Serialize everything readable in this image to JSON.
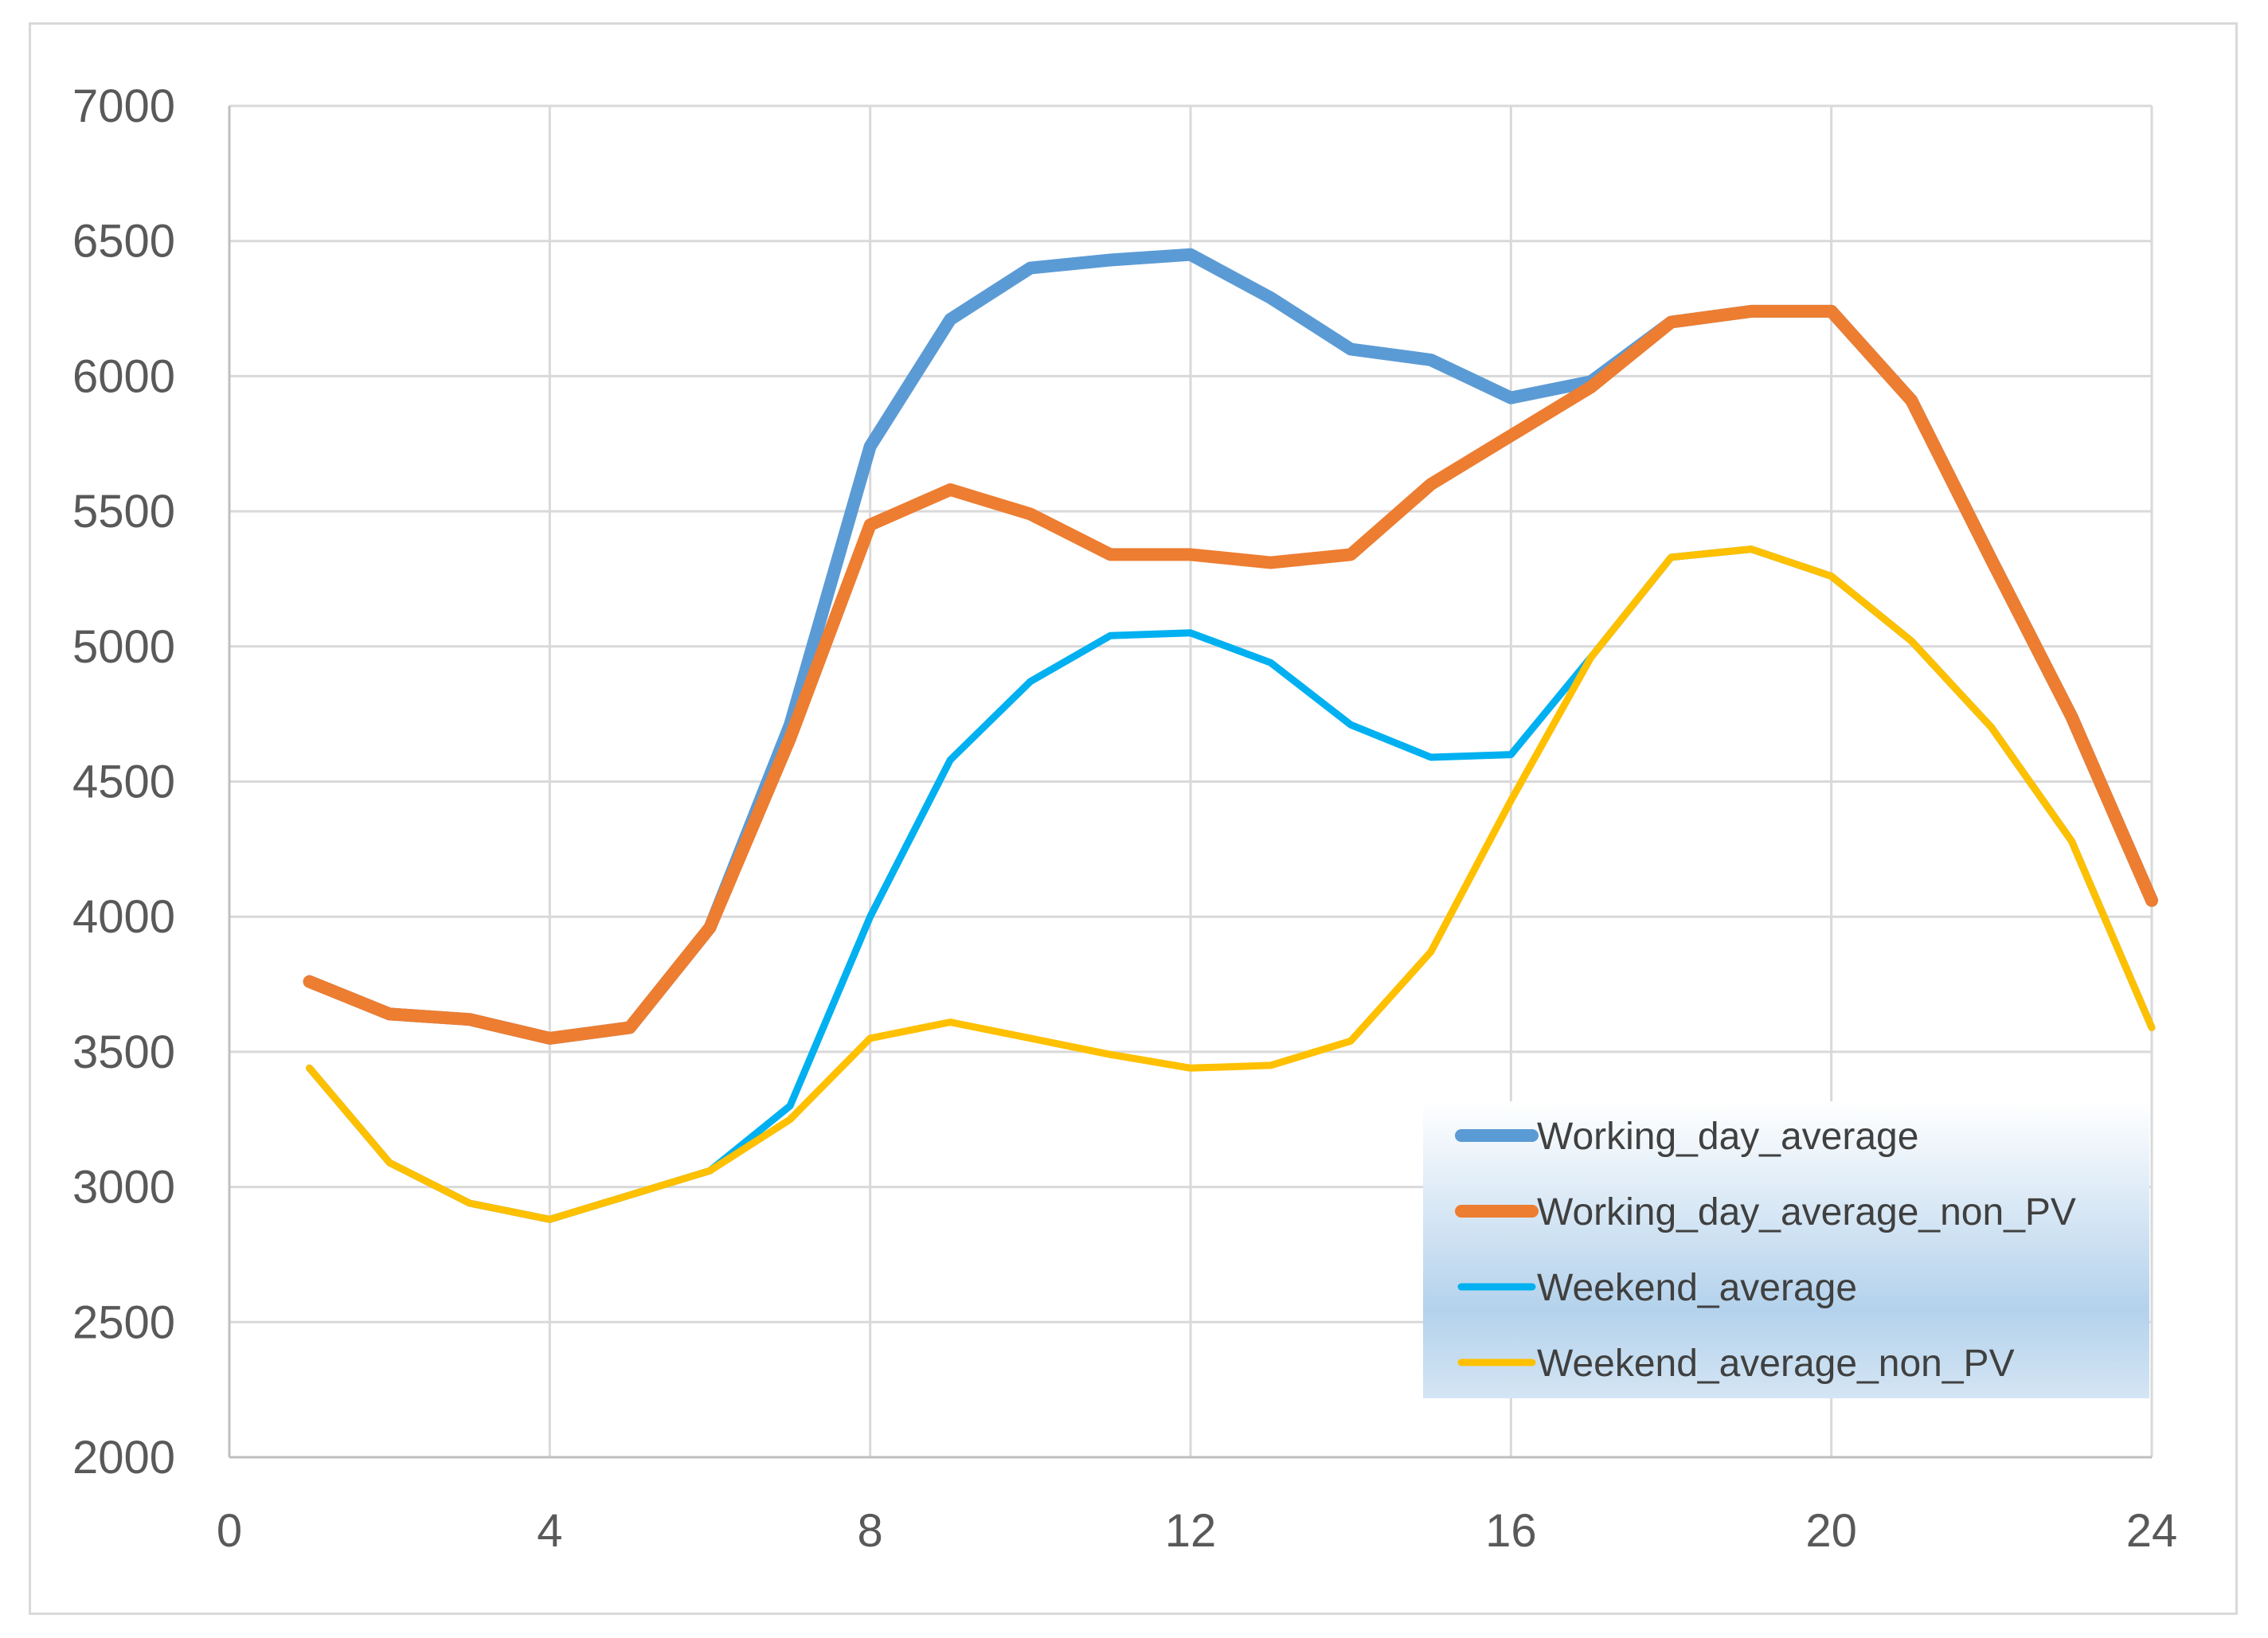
{
  "chart_data": {
    "type": "line",
    "title": "",
    "xlabel": "",
    "ylabel": "",
    "xlim": [
      0,
      24
    ],
    "ylim": [
      2000,
      7000
    ],
    "x_ticks": [
      0,
      4,
      8,
      12,
      16,
      20,
      24
    ],
    "y_ticks": [
      2000,
      2500,
      3000,
      3500,
      4000,
      4500,
      5000,
      5500,
      6000,
      6500,
      7000
    ],
    "grid": true,
    "legend_position": "bottom-right",
    "x": [
      1,
      2,
      3,
      4,
      5,
      6,
      7,
      8,
      9,
      10,
      11,
      12,
      13,
      14,
      15,
      16,
      17,
      18,
      19,
      20,
      21,
      22,
      23,
      24
    ],
    "series": [
      {
        "name": "Working_day_average",
        "color": "#5b9bd5",
        "values": [
          3760,
          3640,
          3620,
          3550,
          3590,
          3960,
          4710,
          5740,
          6210,
          6400,
          6430,
          6450,
          6290,
          6100,
          6060,
          5920,
          5980,
          6200,
          6240,
          6240,
          5910,
          5320,
          4740,
          4060
        ]
      },
      {
        "name": "Working_day_average_non_PV",
        "color": "#ed7d31",
        "values": [
          3760,
          3640,
          3620,
          3550,
          3590,
          3960,
          4660,
          5450,
          5580,
          5490,
          5340,
          5340,
          5310,
          5340,
          5600,
          5780,
          5960,
          6200,
          6240,
          6240,
          5910,
          5320,
          4740,
          4060
        ]
      },
      {
        "name": "Weekend_average",
        "color": "#00b0f0",
        "values": [
          3440,
          3090,
          2940,
          2880,
          2970,
          3060,
          3300,
          4000,
          4580,
          4870,
          5040,
          5050,
          4940,
          4710,
          4590,
          4600,
          4960,
          5330,
          5360,
          5260,
          5020,
          4700,
          4280,
          3590
        ]
      },
      {
        "name": "Weekend_average_non_PV",
        "color": "#ffc000",
        "values": [
          3440,
          3090,
          2940,
          2880,
          2970,
          3060,
          3250,
          3550,
          3610,
          3550,
          3490,
          3440,
          3450,
          3540,
          3870,
          4430,
          4960,
          5330,
          5360,
          5260,
          5020,
          4700,
          4280,
          3590
        ]
      }
    ]
  }
}
